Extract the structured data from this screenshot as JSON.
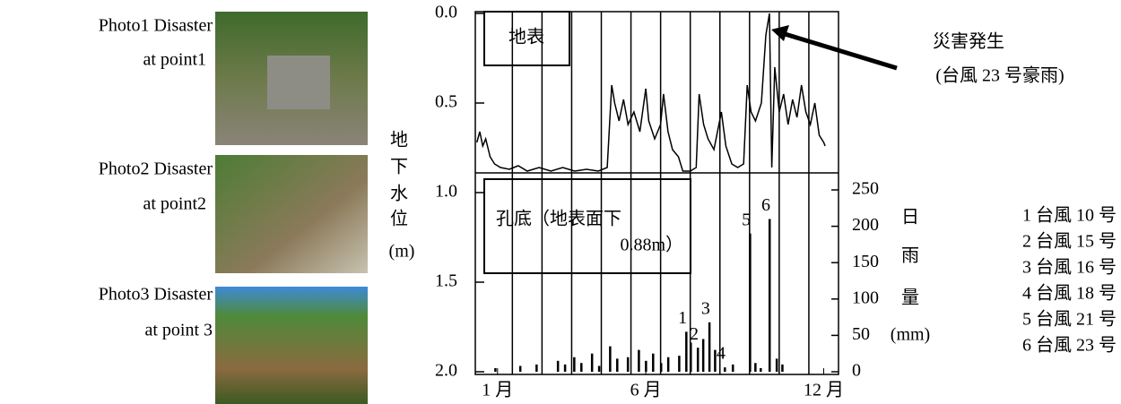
{
  "photos": [
    {
      "caption": [
        "Photo1 Disaster",
        "at point1"
      ]
    },
    {
      "caption": [
        "Photo2 Disaster",
        "at point2"
      ]
    },
    {
      "caption": [
        "Photo3 Disaster",
        "at point 3"
      ]
    }
  ],
  "chart_data": {
    "type": "line",
    "ylabel": [
      "地",
      "下",
      "水",
      "位",
      "(m)"
    ],
    "y2label": [
      "日",
      "雨",
      "量",
      "(mm)"
    ],
    "xlim": [
      0.25,
      12.5
    ],
    "xticks": [
      {
        "value": 1,
        "label": "1 月"
      },
      {
        "value": 6,
        "label": "6 月"
      },
      {
        "value": 12,
        "label": "12 月"
      }
    ],
    "xgrid": [
      1.5,
      2.5,
      3.5,
      4.5,
      5.5,
      6.5,
      7.5,
      8.5,
      9.5,
      10.5,
      11.5
    ],
    "ylim": [
      0,
      2
    ],
    "y_inverted": true,
    "yticks": [
      {
        "value": 0,
        "label": "0.0"
      },
      0.5,
      {
        "value": 1,
        "label": "1.0"
      },
      1.5,
      {
        "value": 2,
        "label": "2.0"
      }
    ],
    "y2lim": [
      0,
      250
    ],
    "y2ticks": [
      0,
      50,
      100,
      150,
      200,
      250
    ],
    "series": [
      {
        "type": "line",
        "color": "#000000",
        "x": [
          0.3,
          0.4,
          0.5,
          0.6,
          0.75,
          0.9,
          1.1,
          1.4,
          1.7,
          2.0,
          2.4,
          2.8,
          3.2,
          3.6,
          4.0,
          4.4,
          4.7,
          4.85,
          4.95,
          5.1,
          5.25,
          5.4,
          5.6,
          5.8,
          6.0,
          6.1,
          6.3,
          6.5,
          6.6,
          6.75,
          6.9,
          7.1,
          7.25,
          7.5,
          7.7,
          7.8,
          7.95,
          8.1,
          8.3,
          8.55,
          8.7,
          8.9,
          9.1,
          9.3,
          9.42,
          9.55,
          9.7,
          9.9,
          10.05,
          10.17,
          10.25,
          10.35,
          10.5,
          10.65,
          10.8,
          10.95,
          11.1,
          11.25,
          11.4,
          11.55,
          11.7,
          11.85,
          12.0,
          12.05
        ],
        "values": [
          0.72,
          0.66,
          0.74,
          0.7,
          0.8,
          0.84,
          0.86,
          0.87,
          0.85,
          0.88,
          0.86,
          0.88,
          0.86,
          0.88,
          0.87,
          0.88,
          0.86,
          0.4,
          0.5,
          0.6,
          0.48,
          0.62,
          0.55,
          0.66,
          0.42,
          0.6,
          0.7,
          0.62,
          0.45,
          0.66,
          0.76,
          0.8,
          0.88,
          0.88,
          0.86,
          0.45,
          0.62,
          0.7,
          0.76,
          0.55,
          0.74,
          0.84,
          0.86,
          0.84,
          0.4,
          0.55,
          0.6,
          0.5,
          0.12,
          0.0,
          0.86,
          0.3,
          0.55,
          0.45,
          0.62,
          0.48,
          0.58,
          0.4,
          0.55,
          0.62,
          0.5,
          0.68,
          0.72,
          0.74
        ]
      },
      {
        "type": "bar",
        "axis": "y2",
        "color": "#000000",
        "x": [
          0.92,
          1.76,
          2.31,
          3.03,
          3.27,
          3.58,
          3.82,
          4.18,
          4.42,
          4.79,
          5.03,
          5.39,
          5.76,
          6.0,
          6.24,
          6.51,
          6.75,
          7.12,
          7.36,
          7.51,
          7.75,
          7.93,
          8.14,
          8.33,
          8.66,
          8.93,
          9.51,
          9.69,
          9.87,
          10.17,
          10.41,
          10.6
        ],
        "values": [
          5,
          8,
          10,
          15,
          10,
          20,
          12,
          25,
          8,
          35,
          18,
          20,
          30,
          15,
          25,
          12,
          20,
          22,
          55,
          40,
          33,
          45,
          68,
          30,
          6,
          10,
          190,
          12,
          5,
          210,
          18,
          10
        ],
        "event_labels": [
          null,
          null,
          null,
          null,
          null,
          null,
          null,
          null,
          null,
          null,
          null,
          null,
          null,
          null,
          null,
          null,
          null,
          null,
          "1",
          null,
          "2",
          null,
          "3",
          null,
          "4",
          null,
          "5",
          null,
          null,
          "6",
          null,
          null
        ]
      }
    ],
    "annotations": {
      "surface": "地表",
      "bottom": [
        "孔底（地表面下",
        "0.88m）"
      ],
      "disaster": [
        "災害発生",
        "(台風 23 号豪雨)"
      ]
    },
    "event_legend": [
      "1 台風 10 号",
      "2 台風 15 号",
      "3 台風 16 号",
      "4 台風 18 号",
      "5 台風 21 号",
      "6 台風 23 号"
    ]
  }
}
